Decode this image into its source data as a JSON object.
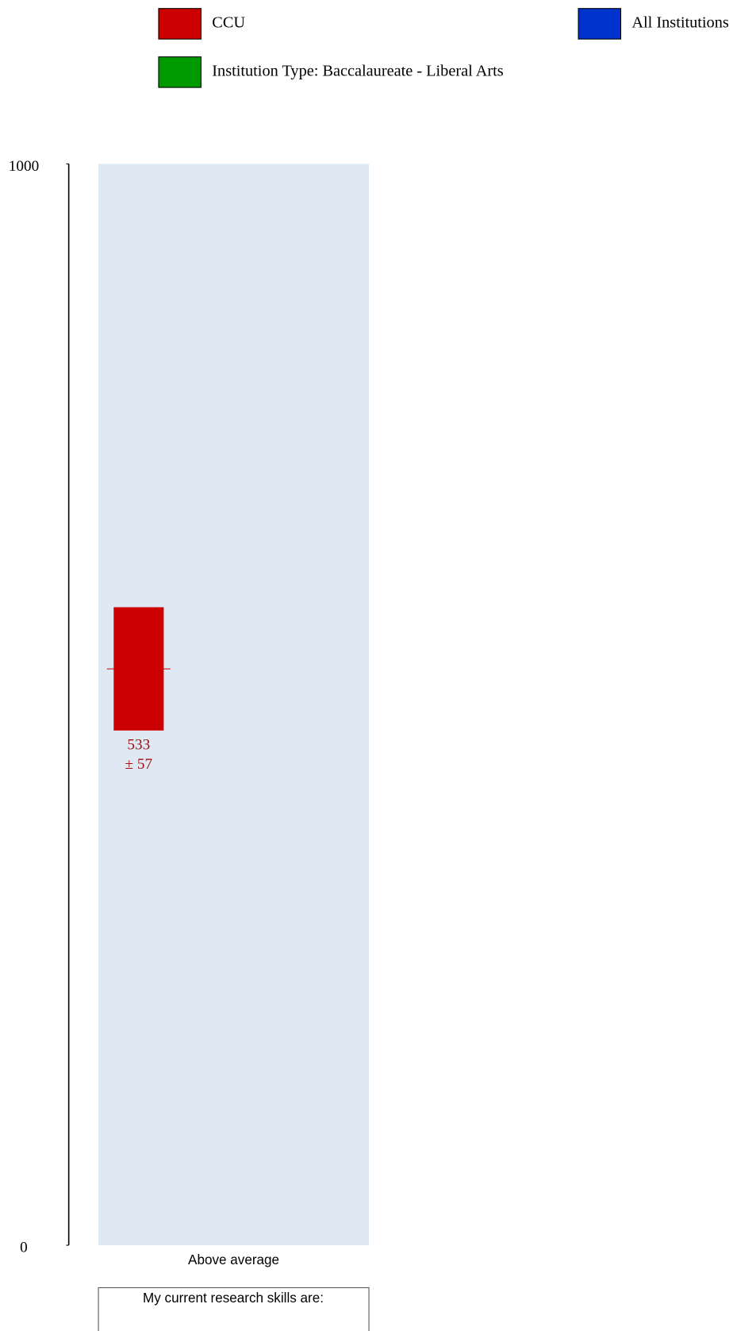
{
  "chart_data": {
    "type": "bar",
    "categories": [
      "Above average"
    ],
    "series": [
      {
        "name": "CCU",
        "color": "#cc0000",
        "values": [
          533
        ],
        "errors": [
          57
        ],
        "error_labels": [
          "± 57"
        ]
      },
      {
        "name": "All Institutions",
        "color": "#0033cc",
        "values": [
          null
        ]
      },
      {
        "name": "Institution Type: Baccalaureate - Liberal Arts",
        "color": "#009900",
        "values": [
          null
        ]
      }
    ],
    "ylim": [
      0,
      1000
    ],
    "yticks": [
      0,
      1000
    ],
    "caption": "My current research skills are:"
  }
}
